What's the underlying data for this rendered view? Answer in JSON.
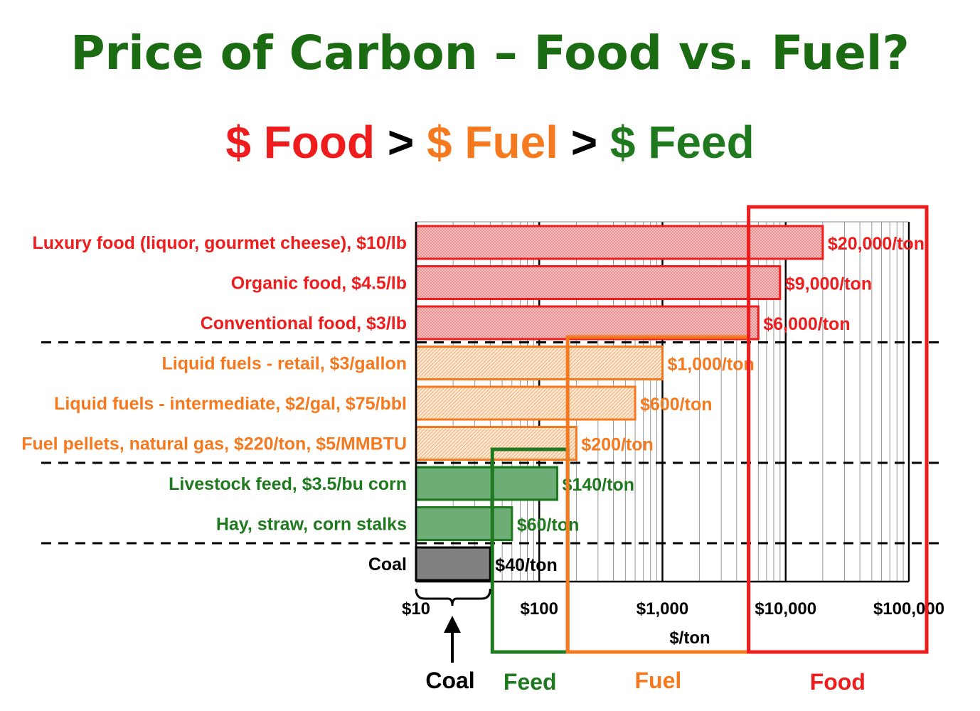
{
  "header": {
    "title": "Price of Carbon – Food vs. Fuel?",
    "subtitle": {
      "food": "$ Food",
      "gt1": " > ",
      "fuel": "$ Fuel",
      "gt2": " > ",
      "feed": "$ Feed"
    }
  },
  "colors": {
    "title": "#1a6b12",
    "food": "#ee1c1c",
    "fuel": "#f57a1f",
    "feed": "#1f7a1f",
    "coal": "#7f7f7f",
    "black": "#000000"
  },
  "chart_data": {
    "type": "bar",
    "orientation": "horizontal",
    "x_scale": "log",
    "xlim": [
      10,
      100000
    ],
    "xlabel": "$/ton",
    "x_ticks": [
      {
        "value": 10,
        "label": "$10"
      },
      {
        "value": 100,
        "label": "$100"
      },
      {
        "value": 1000,
        "label": "$1,000"
      },
      {
        "value": 10000,
        "label": "$10,000"
      },
      {
        "value": 100000,
        "label": "$100,000"
      }
    ],
    "grid": true,
    "bars": [
      {
        "category": "Luxury food (liquor, gourmet cheese), $10/lb",
        "value": 20000,
        "value_label": "$20,000/ton",
        "group": "food"
      },
      {
        "category": "Organic food, $4.5/lb",
        "value": 9000,
        "value_label": "$9,000/ton",
        "group": "food"
      },
      {
        "category": "Conventional food, $3/lb",
        "value": 6000,
        "value_label": "$6,000/ton",
        "group": "food"
      },
      {
        "category": "Liquid fuels - retail, $3/gallon",
        "value": 1000,
        "value_label": "$1,000/ton",
        "group": "fuel"
      },
      {
        "category": "Liquid fuels - intermediate, $2/gal, $75/bbl",
        "value": 600,
        "value_label": "$600/ton",
        "group": "fuel"
      },
      {
        "category": "Fuel pellets, natural gas, $220/ton, $5/MMBTU",
        "value": 200,
        "value_label": "$200/ton",
        "group": "fuel"
      },
      {
        "category": "Livestock feed, $3.5/bu corn",
        "value": 140,
        "value_label": "$140/ton",
        "group": "feed"
      },
      {
        "category": "Hay, straw, corn stalks",
        "value": 60,
        "value_label": "$60/ton",
        "group": "feed"
      },
      {
        "category": "Coal",
        "value": 40,
        "value_label": "$40/ton",
        "group": "coal"
      }
    ],
    "range_boxes": [
      {
        "label": "Feed",
        "group": "feed",
        "from": 40,
        "to": 170
      },
      {
        "label": "Fuel",
        "group": "fuel",
        "from": 170,
        "to": 5000
      },
      {
        "label": "Food",
        "group": "food",
        "from": 5000,
        "to": 100000
      }
    ],
    "coal_range": {
      "label": "Coal",
      "from": 10,
      "to": 40
    }
  }
}
